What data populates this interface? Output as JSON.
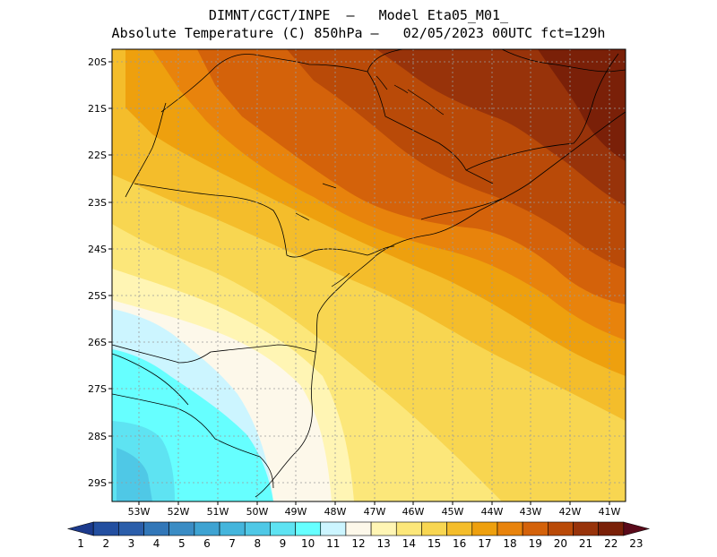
{
  "header": {
    "line1": "DIMNT/CGCT/INPE  –   Model Eta05_M01_",
    "line2": "Absolute Temperature (C) 850hPa –   02/05/2023 00UTC fct=129h"
  },
  "map": {
    "lat_labels": [
      "20S",
      "21S",
      "22S",
      "23S",
      "24S",
      "25S",
      "26S",
      "27S",
      "28S",
      "29S"
    ],
    "lon_labels": [
      "53W",
      "52W",
      "51W",
      "50W",
      "49W",
      "48W",
      "47W",
      "46W",
      "45W",
      "44W",
      "43W",
      "42W",
      "41W"
    ],
    "lat_range": [
      -29.4,
      -19.8
    ],
    "lon_range": [
      -53.6,
      -40.5
    ],
    "field": "Absolute Temperature (C) 850hPa"
  },
  "colorbar": {
    "labels": [
      "1",
      "2",
      "3",
      "4",
      "5",
      "6",
      "7",
      "8",
      "9",
      "10",
      "11",
      "12",
      "13",
      "14",
      "15",
      "16",
      "17",
      "18",
      "19",
      "20",
      "21",
      "22",
      "23"
    ],
    "colors": [
      "#1c3a8c",
      "#234fa0",
      "#2b5eaa",
      "#3277b8",
      "#3a8cc4",
      "#3ea3d2",
      "#44b5dc",
      "#4fc8e6",
      "#5ee3f2",
      "#66ffff",
      "#ccf5ff",
      "#fdf8ea",
      "#fff5b4",
      "#fce77a",
      "#f8d651",
      "#f4bd2b",
      "#eea00e",
      "#e8830c",
      "#d4620a",
      "#b94a08",
      "#98330a",
      "#7a2008",
      "#5a0a1a"
    ]
  }
}
